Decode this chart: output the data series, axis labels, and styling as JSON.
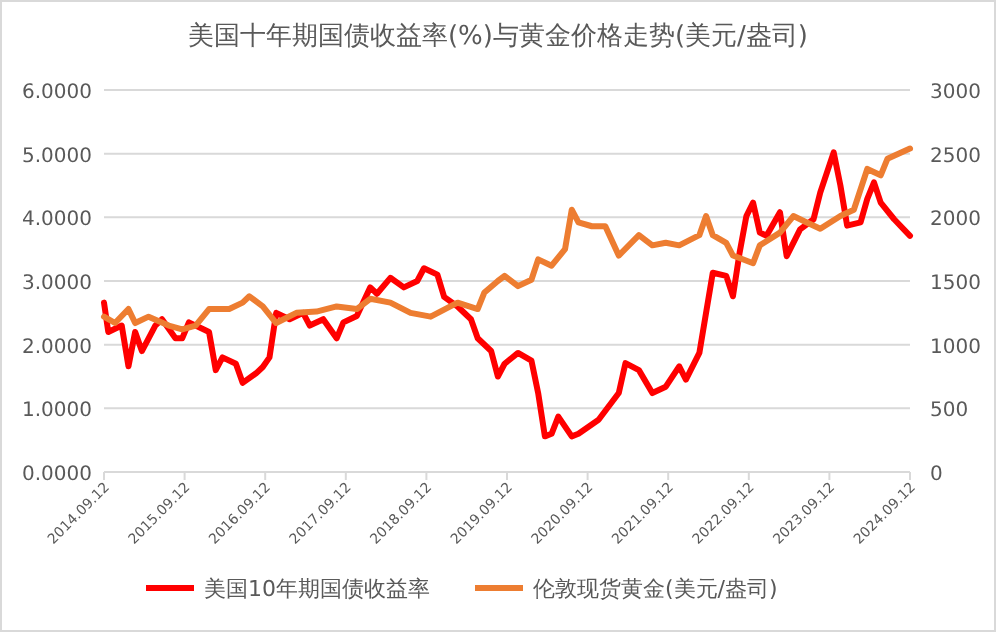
{
  "chart_data": {
    "type": "line",
    "title": "美国十年期国债收益率(%)与黄金价格走势(美元/盎司)",
    "series": [
      {
        "name": "美国10年期国债收益率",
        "color": "#ff0000",
        "axis": "y",
        "x": [
          "2014-09-12",
          "2014-10",
          "2014-12",
          "2015-01",
          "2015-02",
          "2015-03",
          "2015-05",
          "2015-06",
          "2015-08",
          "2015-09",
          "2015-10",
          "2015-12",
          "2016-01",
          "2016-02",
          "2016-03",
          "2016-05",
          "2016-06",
          "2016-08",
          "2016-09",
          "2016-10",
          "2016-11",
          "2017-01",
          "2017-03",
          "2017-04",
          "2017-06",
          "2017-08",
          "2017-09",
          "2017-11",
          "2018-01",
          "2018-02",
          "2018-04",
          "2018-06",
          "2018-08",
          "2018-09",
          "2018-11",
          "2018-12",
          "2019-02",
          "2019-04",
          "2019-05",
          "2019-07",
          "2019-08",
          "2019-09",
          "2019-11",
          "2020-01",
          "2020-02",
          "2020-03",
          "2020-04",
          "2020-05",
          "2020-07",
          "2020-08",
          "2020-11",
          "2021-02",
          "2021-03",
          "2021-05",
          "2021-07",
          "2021-09",
          "2021-11",
          "2021-12",
          "2022-02",
          "2022-03",
          "2022-04",
          "2022-06",
          "2022-07",
          "2022-08",
          "2022-09",
          "2022-10",
          "2022-11",
          "2022-12",
          "2023-02",
          "2023-03",
          "2023-05",
          "2023-07",
          "2023-08",
          "2023-10",
          "2023-11",
          "2023-12",
          "2024-02",
          "2024-03",
          "2024-04",
          "2024-05",
          "2024-07",
          "2024-09-12"
        ],
        "values": [
          2.66,
          2.2,
          2.3,
          1.66,
          2.2,
          1.9,
          2.3,
          2.4,
          2.1,
          2.1,
          2.35,
          2.25,
          2.2,
          1.6,
          1.8,
          1.7,
          1.4,
          1.55,
          1.65,
          1.8,
          2.5,
          2.4,
          2.5,
          2.3,
          2.4,
          2.1,
          2.35,
          2.45,
          2.9,
          2.8,
          3.05,
          2.9,
          3.0,
          3.2,
          3.1,
          2.75,
          2.6,
          2.4,
          2.1,
          1.9,
          1.5,
          1.7,
          1.87,
          1.75,
          1.24,
          0.56,
          0.6,
          0.87,
          0.56,
          0.6,
          0.82,
          1.24,
          1.71,
          1.6,
          1.24,
          1.34,
          1.66,
          1.45,
          1.87,
          2.5,
          3.13,
          3.08,
          2.76,
          3.45,
          4.02,
          4.23,
          3.76,
          3.71,
          4.08,
          3.39,
          3.81,
          3.97,
          4.39,
          5.02,
          4.5,
          3.87,
          3.92,
          4.29,
          4.55,
          4.23,
          3.97,
          3.71
        ]
      },
      {
        "name": "伦敦现货黄金(美元/盎司)",
        "color": "#ed7d31",
        "axis": "y2",
        "x": [
          "2014-09-12",
          "2014-11",
          "2015-01",
          "2015-02",
          "2015-04",
          "2015-07",
          "2015-09",
          "2015-11",
          "2016-01",
          "2016-04",
          "2016-06",
          "2016-07",
          "2016-09",
          "2016-11",
          "2017-02",
          "2017-05",
          "2017-08",
          "2017-11",
          "2018-01",
          "2018-04",
          "2018-07",
          "2018-10",
          "2019-02",
          "2019-05",
          "2019-06",
          "2019-08",
          "2019-09",
          "2019-11",
          "2020-01",
          "2020-02",
          "2020-04",
          "2020-06",
          "2020-07",
          "2020-08",
          "2020-10",
          "2020-12",
          "2021-02",
          "2021-05",
          "2021-07",
          "2021-09",
          "2021-11",
          "2022-02",
          "2022-03",
          "2022-04",
          "2022-06",
          "2022-07",
          "2022-10",
          "2022-11",
          "2023-02",
          "2023-04",
          "2023-06",
          "2023-08",
          "2023-11",
          "2024-01",
          "2024-03",
          "2024-05",
          "2024-06",
          "2024-09-12"
        ],
        "values": [
          1220,
          1170,
          1280,
          1170,
          1220,
          1150,
          1120,
          1150,
          1280,
          1280,
          1330,
          1380,
          1300,
          1170,
          1250,
          1260,
          1300,
          1280,
          1360,
          1330,
          1250,
          1220,
          1330,
          1280,
          1410,
          1500,
          1540,
          1460,
          1510,
          1670,
          1620,
          1750,
          2060,
          1960,
          1930,
          1930,
          1700,
          1860,
          1780,
          1800,
          1780,
          1860,
          2010,
          1860,
          1800,
          1700,
          1640,
          1780,
          1880,
          2010,
          1960,
          1910,
          2010,
          2060,
          2380,
          2330,
          2460,
          2540
        ]
      }
    ],
    "xlim": [
      "2014-09-12",
      "2024-09-12"
    ],
    "xticks": [
      {
        "value": "2014-09-12",
        "label": "2014.09.12"
      },
      {
        "value": "2015-09-12",
        "label": "2015.09.12"
      },
      {
        "value": "2016-09-12",
        "label": "2016.09.12"
      },
      {
        "value": "2017-09-12",
        "label": "2017.09.12"
      },
      {
        "value": "2018-09-12",
        "label": "2018.09.12"
      },
      {
        "value": "2019-09-12",
        "label": "2019.09.12"
      },
      {
        "value": "2020-09-12",
        "label": "2020.09.12"
      },
      {
        "value": "2021-09-12",
        "label": "2021.09.12"
      },
      {
        "value": "2022-09-12",
        "label": "2022.09.12"
      },
      {
        "value": "2023-09-12",
        "label": "2023.09.12"
      },
      {
        "value": "2024-09-12",
        "label": "2024.09.12"
      }
    ],
    "ylim": [
      0,
      6
    ],
    "yticks": [
      {
        "value": 0,
        "label": "0.0000"
      },
      {
        "value": 1,
        "label": "1.0000"
      },
      {
        "value": 2,
        "label": "2.0000"
      },
      {
        "value": 3,
        "label": "3.0000"
      },
      {
        "value": 4,
        "label": "4.0000"
      },
      {
        "value": 5,
        "label": "5.0000"
      },
      {
        "value": 6,
        "label": "6.0000"
      }
    ],
    "y2lim": [
      0,
      3000
    ],
    "y2ticks": [
      0,
      500,
      1000,
      1500,
      2000,
      2500,
      3000
    ],
    "grid": "y",
    "legend": "bottom",
    "line_style": "solid",
    "marker": "none"
  }
}
